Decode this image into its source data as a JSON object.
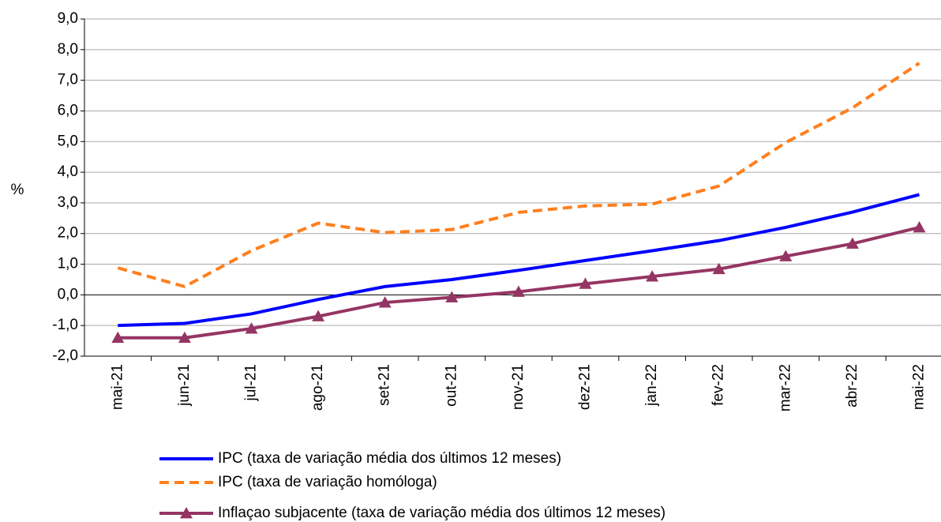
{
  "chart_data": {
    "type": "line",
    "y_label": "%",
    "categories": [
      "mai-21",
      "jun-21",
      "jul-21",
      "ago-21",
      "set-21",
      "out-21",
      "nov-21",
      "dez-21",
      "jan-22",
      "fev-22",
      "mar-22",
      "abr-22",
      "mai-22"
    ],
    "series": [
      {
        "name": "IPC (taxa de variação média dos últimos 12 meses)",
        "color": "#0000ff",
        "style": "solid",
        "marker": "none",
        "values": [
          -1.0,
          -0.93,
          -0.62,
          -0.15,
          0.27,
          0.5,
          0.8,
          1.12,
          1.44,
          1.77,
          2.2,
          2.7,
          3.27
        ]
      },
      {
        "name": "IPC (taxa de variação homóloga)",
        "color": "#ff7f1e",
        "style": "dashed",
        "marker": "none",
        "values": [
          0.88,
          0.27,
          1.44,
          2.34,
          2.03,
          2.13,
          2.69,
          2.9,
          2.96,
          3.55,
          4.97,
          6.1,
          7.56
        ]
      },
      {
        "name": "Inflaçao subjacente (taxa de variação média dos últimos 12 meses)",
        "color": "#953563",
        "style": "solid",
        "marker": "triangle",
        "values": [
          -1.4,
          -1.4,
          -1.1,
          -0.7,
          -0.25,
          -0.08,
          0.1,
          0.36,
          0.6,
          0.84,
          1.26,
          1.67,
          2.2
        ]
      }
    ],
    "ylim": [
      -2,
      9
    ],
    "yticks": [
      {
        "value": -2,
        "label": "-2,0"
      },
      {
        "value": -1,
        "label": "-1,0"
      },
      {
        "value": 0,
        "label": "0,0"
      },
      {
        "value": 1,
        "label": "1,0"
      },
      {
        "value": 2,
        "label": "2,0"
      },
      {
        "value": 3,
        "label": "3,0"
      },
      {
        "value": 4,
        "label": "4,0"
      },
      {
        "value": 5,
        "label": "5,0"
      },
      {
        "value": 6,
        "label": "6,0"
      },
      {
        "value": 7,
        "label": "7,0"
      },
      {
        "value": 8,
        "label": "8,0"
      },
      {
        "value": 9,
        "label": "9,0"
      }
    ],
    "grid": true,
    "legend": "bottom"
  }
}
